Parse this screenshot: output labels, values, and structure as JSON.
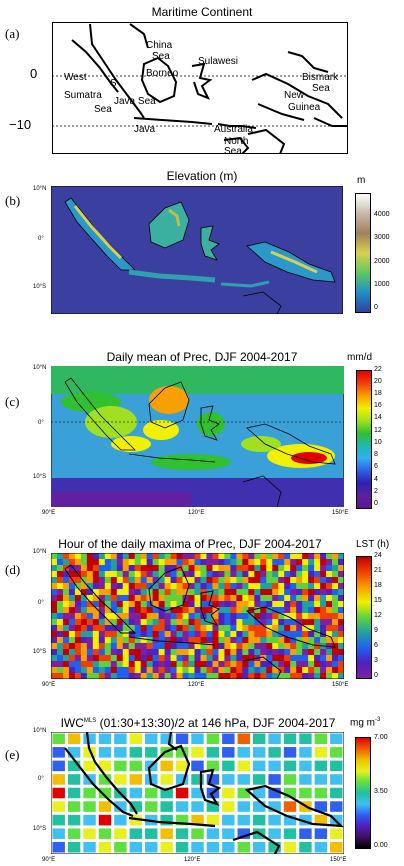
{
  "panels": [
    {
      "id": "a",
      "label": "(a)",
      "title": "Maritime Continent",
      "y_ticks": [
        "0",
        "−10"
      ],
      "regions": [
        "China",
        "Sea",
        "Sulawesi",
        "Borneo",
        "Bismark",
        "Sea",
        "West",
        "S",
        "Sumatra",
        "Sea",
        "Java Sea",
        "New",
        "Guinea",
        "Java",
        "North",
        "Australia",
        "Sea"
      ]
    },
    {
      "id": "b",
      "label": "(b)",
      "title": "Elevation (m)",
      "unit": "m",
      "y_ticks": [
        "10°N",
        "0°",
        "10°S"
      ],
      "colorbar_ticks": [
        "4000",
        "3000",
        "2000",
        "1000",
        "0"
      ],
      "colorbar_colors": [
        "#ffffff",
        "#c8b8a8",
        "#a08060",
        "#d8d050",
        "#60c860",
        "#2090c8",
        "#3040a0"
      ]
    },
    {
      "id": "c",
      "label": "(c)",
      "title": "Daily mean of Prec, DJF 2004-2017",
      "unit": "mm/d",
      "y_ticks": [
        "10°N",
        "0°",
        "10°S"
      ],
      "x_ticks": [
        "90°E",
        "120°E",
        "150°E"
      ],
      "colorbar_ticks": [
        "22",
        "20",
        "18",
        "16",
        "14",
        "12",
        "10",
        "8",
        "6",
        "4",
        "2",
        "0"
      ],
      "colorbar_colors": [
        "#e00000",
        "#f04010",
        "#f8a000",
        "#f0f000",
        "#a0e020",
        "#30c030",
        "#20b8b0",
        "#30b0f0",
        "#3060e0",
        "#3020b0",
        "#6020a0",
        "#5a1890"
      ]
    },
    {
      "id": "d",
      "label": "(d)",
      "title": "Hour of the daily maxima of Prec, DJF 2004-2017",
      "unit": "LST (h)",
      "y_ticks": [
        "10°N",
        "0°",
        "10°S"
      ],
      "x_ticks": [
        "90°E",
        "120°E",
        "150°E"
      ],
      "colorbar_ticks": [
        "24",
        "21",
        "18",
        "15",
        "12",
        "9",
        "6",
        "3",
        "0"
      ],
      "colorbar_colors": [
        "#c00000",
        "#f04000",
        "#f8a000",
        "#f0f000",
        "#60d040",
        "#20a0a0",
        "#2060f0",
        "#5020c0",
        "#8020a0"
      ]
    },
    {
      "id": "e",
      "label": "(e)",
      "title_main": "IWC",
      "title_sup": "MLS",
      "title_rest": " (01:30+13:30)/2 at 146 hPa, DJF 2004-2017",
      "unit_main": "mg m",
      "unit_sup": "-3",
      "y_ticks": [
        "10°N",
        "0°",
        "10°S"
      ],
      "x_ticks": [
        "90°E",
        "120°E",
        "150°E"
      ],
      "colorbar_ticks": [
        "7.00",
        "3.50",
        "0.00"
      ],
      "colorbar_colors": [
        "#e00000",
        "#f06000",
        "#f0c000",
        "#e8f020",
        "#60e040",
        "#20c0a0",
        "#40c0f0",
        "#3060f0",
        "#5020c0",
        "#401060",
        "#000000"
      ]
    }
  ]
}
